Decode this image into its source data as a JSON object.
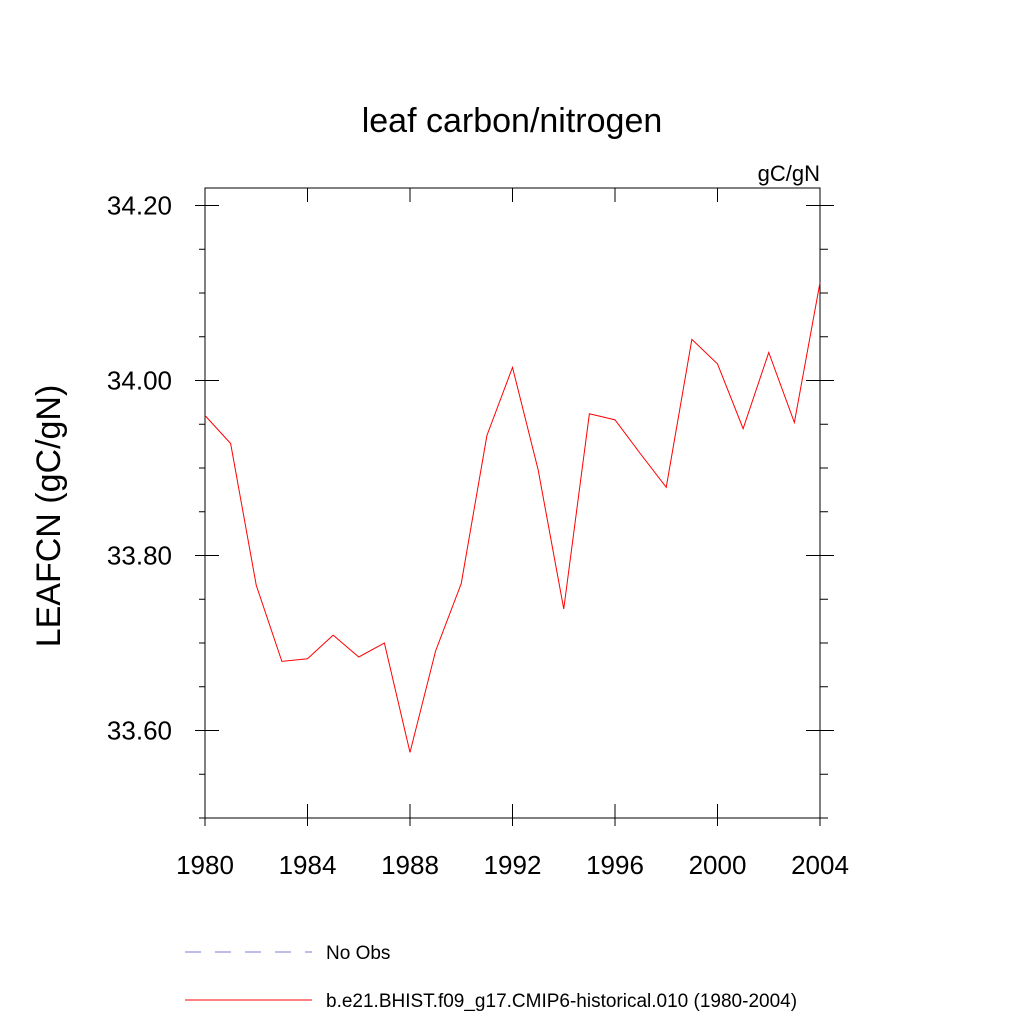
{
  "chart_data": {
    "type": "line",
    "title": "leaf carbon/nitrogen",
    "units_label": "gC/gN",
    "ylabel": "LEAFCN  (gC/gN)",
    "xlabel": "",
    "xlim": [
      1980,
      2004
    ],
    "ylim": [
      33.5,
      34.22
    ],
    "x_ticks": [
      1980,
      1984,
      1988,
      1992,
      1996,
      2000,
      2004
    ],
    "x_tick_labels": [
      "1980",
      "1984",
      "1988",
      "1992",
      "1996",
      "2000",
      "2004"
    ],
    "y_ticks": [
      33.6,
      33.8,
      34.0,
      34.2
    ],
    "y_tick_labels": [
      "33.60",
      "33.80",
      "34.00",
      "34.20"
    ],
    "y_minor_step": 0.05,
    "grid": false,
    "legend_position": "bottom",
    "series": [
      {
        "name": "b.e21.BHIST.f09_g17.CMIP6-historical.010 (1980-2004)",
        "color": "#ff0000",
        "style": "solid",
        "x": [
          1980,
          1981,
          1982,
          1983,
          1984,
          1985,
          1986,
          1987,
          1988,
          1989,
          1990,
          1991,
          1992,
          1993,
          1994,
          1995,
          1996,
          1997,
          1998,
          1999,
          2000,
          2001,
          2002,
          2003,
          2004
        ],
        "values": [
          33.96,
          33.928,
          33.766,
          33.679,
          33.682,
          33.709,
          33.684,
          33.7,
          33.575,
          33.691,
          33.768,
          33.937,
          34.015,
          33.898,
          33.739,
          33.962,
          33.955,
          33.916,
          33.878,
          34.047,
          34.019,
          33.945,
          34.032,
          33.952,
          34.112
        ]
      }
    ],
    "legend": [
      {
        "label": "No Obs",
        "color": "#7b7bd8",
        "style": "dashed"
      },
      {
        "label": "b.e21.BHIST.f09_g17.CMIP6-historical.010 (1980-2004)",
        "color": "#ff0000",
        "style": "solid"
      }
    ]
  }
}
